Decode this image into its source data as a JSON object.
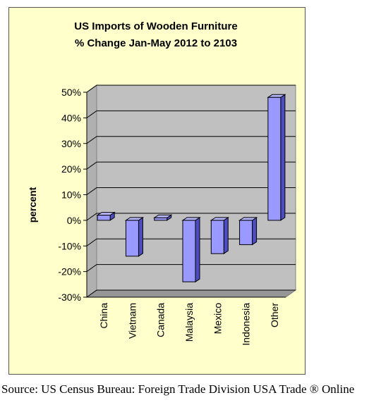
{
  "chart_data": {
    "type": "bar",
    "title_lines": [
      "US Imports of Wooden Furniture",
      "% Change Jan-May 2012 to 2103"
    ],
    "ylabel": "percent",
    "categories": [
      "China",
      "Vietnam",
      "Canada",
      "Malaysia",
      "Mexico",
      "Indonesia",
      "Other"
    ],
    "values": [
      2,
      -14,
      1,
      -24,
      -13,
      -9.5,
      48
    ],
    "ylim": [
      -30,
      50
    ],
    "yticks": [
      50,
      40,
      30,
      20,
      10,
      0,
      -10,
      -20,
      -30
    ],
    "ytick_labels": [
      "50%",
      "40%",
      "30%",
      "20%",
      "10%",
      "0%",
      "-10%",
      "-20%",
      "-30%"
    ],
    "grid": true,
    "legend": "none",
    "colors": {
      "bar_front": "#9999ff",
      "bar_side": "#4d4dbf",
      "bar_top": "#b8b8ff",
      "plot_back": "#c0c0c0",
      "plot_floor": "#969696",
      "chart_bg": "#ffffcc"
    }
  },
  "source_note": "Source: US Census Bureau: Foreign Trade Division USA Trade ® Online"
}
